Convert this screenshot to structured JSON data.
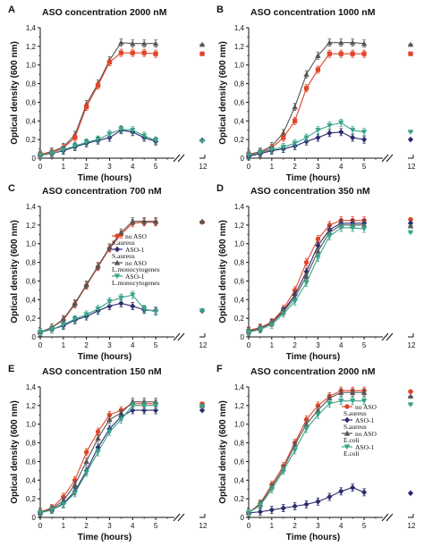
{
  "figure": {
    "x_ticks": [
      "0",
      "1",
      "2",
      "3",
      "4",
      "5"
    ],
    "y_ticks": [
      "0",
      "0,2",
      "0,4",
      "0,6",
      "0,8",
      "1,0",
      "1,2",
      "1,4"
    ],
    "x_break_label": "12",
    "xlabel": "Time (hours)",
    "ylabel": "Optical density (600 nm)"
  },
  "chart_data": [
    {
      "panel": "A",
      "title": "ASO concentration 2000 nM",
      "type": "line",
      "xlabel": "Time (hours)",
      "ylabel": "Optical density (600 nm)",
      "xlim": [
        0,
        5.5
      ],
      "ylim": [
        0,
        1.4
      ],
      "x": [
        0,
        0.5,
        1,
        1.5,
        2,
        2.5,
        3,
        3.5,
        4,
        4.5,
        5
      ],
      "series": [
        {
          "color": "#555555",
          "marker": "triangle-up",
          "values": [
            0.04,
            0.07,
            0.12,
            0.25,
            0.58,
            0.8,
            1.05,
            1.24,
            1.23,
            1.23,
            1.23
          ],
          "end_value": 1.22
        },
        {
          "color": "#e0452a",
          "marker": "square",
          "values": [
            0.04,
            0.06,
            0.11,
            0.22,
            0.55,
            0.78,
            1.03,
            1.13,
            1.13,
            1.13,
            1.12
          ],
          "end_value": 1.12
        },
        {
          "color": "#2c2c6e",
          "marker": "diamond",
          "values": [
            0.03,
            0.05,
            0.08,
            0.12,
            0.16,
            0.19,
            0.22,
            0.3,
            0.28,
            0.22,
            0.18
          ],
          "end_value": 0.19
        },
        {
          "color": "#3aa48a",
          "marker": "triangle-down",
          "values": [
            0.03,
            0.05,
            0.09,
            0.13,
            0.17,
            0.2,
            0.26,
            0.31,
            0.3,
            0.24,
            0.19
          ],
          "end_value": 0.18
        }
      ]
    },
    {
      "panel": "B",
      "title": "ASO concentration 1000 nM",
      "type": "line",
      "xlabel": "Time (hours)",
      "ylabel": "Optical density (600 nm)",
      "xlim": [
        0,
        5.5
      ],
      "ylim": [
        0,
        1.4
      ],
      "x": [
        0,
        0.5,
        1,
        1.5,
        2,
        2.5,
        3,
        3.5,
        4,
        4.5,
        5
      ],
      "series": [
        {
          "color": "#555555",
          "marker": "triangle-up",
          "values": [
            0.04,
            0.07,
            0.13,
            0.27,
            0.55,
            0.9,
            1.1,
            1.24,
            1.24,
            1.24,
            1.23
          ],
          "end_value": 1.22
        },
        {
          "color": "#e0452a",
          "marker": "square",
          "values": [
            0.04,
            0.06,
            0.11,
            0.22,
            0.4,
            0.75,
            0.95,
            1.12,
            1.12,
            1.12,
            1.12
          ],
          "end_value": 1.12
        },
        {
          "color": "#2c2c6e",
          "marker": "diamond",
          "values": [
            0.02,
            0.05,
            0.08,
            0.1,
            0.13,
            0.18,
            0.22,
            0.27,
            0.28,
            0.22,
            0.2
          ],
          "end_value": 0.2
        },
        {
          "color": "#3aa48a",
          "marker": "triangle-down",
          "values": [
            0.03,
            0.06,
            0.09,
            0.12,
            0.16,
            0.22,
            0.3,
            0.35,
            0.38,
            0.3,
            0.28
          ],
          "end_value": 0.28
        }
      ]
    },
    {
      "panel": "C",
      "title": "ASO concentration 700 nM",
      "type": "line",
      "xlabel": "Time (hours)",
      "ylabel": "Optical density (600 nm)",
      "xlim": [
        0,
        5.5
      ],
      "ylim": [
        0,
        1.4
      ],
      "x": [
        0,
        0.5,
        1,
        1.5,
        2,
        2.5,
        3,
        3.5,
        4,
        4.5,
        5
      ],
      "legend": {
        "position": "center-right",
        "entries": [
          "no ASO",
          "S.aureus",
          "ASO-1",
          "S.aureus",
          "no ASO",
          "L.monocytogenes",
          "ASO-1",
          "L.monocytogenes"
        ]
      },
      "series": [
        {
          "color": "#e0452a",
          "marker": "circle",
          "values": [
            0.05,
            0.1,
            0.18,
            0.35,
            0.55,
            0.75,
            0.95,
            1.1,
            1.22,
            1.23,
            1.23
          ],
          "end_value": 1.23
        },
        {
          "color": "#2c2c6e",
          "marker": "diamond",
          "values": [
            0.05,
            0.08,
            0.12,
            0.18,
            0.22,
            0.28,
            0.33,
            0.36,
            0.33,
            0.29,
            0.28
          ],
          "end_value": 0.28
        },
        {
          "color": "#555555",
          "marker": "triangle-up",
          "values": [
            0.05,
            0.1,
            0.19,
            0.36,
            0.56,
            0.76,
            0.96,
            1.12,
            1.24,
            1.24,
            1.24
          ],
          "end_value": 1.24
        },
        {
          "color": "#3aa48a",
          "marker": "triangle-down",
          "values": [
            0.05,
            0.08,
            0.13,
            0.19,
            0.24,
            0.3,
            0.38,
            0.42,
            0.45,
            0.3,
            0.27
          ],
          "end_value": 0.28
        }
      ]
    },
    {
      "panel": "D",
      "title": "ASO concentration 350 nM",
      "type": "line",
      "xlabel": "Time (hours)",
      "ylabel": "Optical density (600 nm)",
      "xlim": [
        0,
        5.5
      ],
      "ylim": [
        0,
        1.4
      ],
      "x": [
        0,
        0.5,
        1,
        1.5,
        2,
        2.5,
        3,
        3.5,
        4,
        4.5,
        5
      ],
      "series": [
        {
          "color": "#e0452a",
          "marker": "circle",
          "values": [
            0.07,
            0.1,
            0.16,
            0.3,
            0.5,
            0.8,
            1.05,
            1.2,
            1.25,
            1.25,
            1.25
          ],
          "end_value": 1.26
        },
        {
          "color": "#2c2c6e",
          "marker": "diamond",
          "values": [
            0.06,
            0.09,
            0.15,
            0.28,
            0.45,
            0.7,
            0.98,
            1.15,
            1.22,
            1.22,
            1.22
          ],
          "end_value": 1.22
        },
        {
          "color": "#555555",
          "marker": "triangle-up",
          "values": [
            0.06,
            0.09,
            0.15,
            0.27,
            0.42,
            0.65,
            0.92,
            1.12,
            1.2,
            1.2,
            1.2
          ],
          "end_value": 1.19
        },
        {
          "color": "#3aa48a",
          "marker": "triangle-down",
          "values": [
            0.05,
            0.08,
            0.13,
            0.25,
            0.38,
            0.58,
            0.85,
            1.08,
            1.17,
            1.17,
            1.16
          ],
          "end_value": 1.12
        }
      ]
    },
    {
      "panel": "E",
      "title": "ASO concentration 150 nM",
      "type": "line",
      "xlabel": "Time (hours)",
      "ylabel": "Optical density (600 nm)",
      "xlim": [
        0,
        5.5
      ],
      "ylim": [
        0,
        1.4
      ],
      "x": [
        0,
        0.5,
        1,
        1.5,
        2,
        2.5,
        3,
        3.5,
        4,
        4.5,
        5
      ],
      "series": [
        {
          "color": "#e0452a",
          "marker": "circle",
          "values": [
            0.06,
            0.1,
            0.22,
            0.4,
            0.7,
            0.92,
            1.1,
            1.15,
            1.22,
            1.22,
            1.22
          ],
          "end_value": 1.22
        },
        {
          "color": "#555555",
          "marker": "triangle-up",
          "values": [
            0.05,
            0.09,
            0.18,
            0.35,
            0.6,
            0.85,
            1.05,
            1.12,
            1.24,
            1.24,
            1.24
          ],
          "end_value": 1.2
        },
        {
          "color": "#2c2c6e",
          "marker": "diamond",
          "values": [
            0.05,
            0.08,
            0.15,
            0.28,
            0.5,
            0.75,
            0.95,
            1.08,
            1.15,
            1.15,
            1.15
          ],
          "end_value": 1.15
        },
        {
          "color": "#3aa48a",
          "marker": "triangle-down",
          "values": [
            0.05,
            0.08,
            0.14,
            0.26,
            0.48,
            0.7,
            0.92,
            1.05,
            1.2,
            1.2,
            1.2
          ],
          "end_value": 1.19
        }
      ]
    },
    {
      "panel": "F",
      "title": "ASO concentration 2000 nM",
      "type": "line",
      "xlabel": "Time (hours)",
      "ylabel": "Optical density (600 nm)",
      "xlim": [
        0,
        5.5
      ],
      "ylim": [
        0,
        1.4
      ],
      "x": [
        0,
        0.5,
        1,
        1.5,
        2,
        2.5,
        3,
        3.5,
        4,
        4.5,
        5
      ],
      "legend": {
        "position": "top-right",
        "entries": [
          "no ASO",
          "S.aureus",
          "ASO-1",
          "S.aureus",
          "no ASO",
          "E.coli",
          "ASO-1",
          "E.coli"
        ]
      },
      "series": [
        {
          "color": "#e0452a",
          "marker": "circle",
          "values": [
            0.05,
            0.15,
            0.35,
            0.55,
            0.8,
            1.05,
            1.2,
            1.3,
            1.36,
            1.36,
            1.36
          ],
          "end_value": 1.35
        },
        {
          "color": "#2c2c6e",
          "marker": "diamond",
          "values": [
            0.05,
            0.06,
            0.08,
            0.1,
            0.12,
            0.14,
            0.17,
            0.22,
            0.28,
            0.32,
            0.27
          ],
          "end_value": 0.26
        },
        {
          "color": "#555555",
          "marker": "triangle-up",
          "values": [
            0.05,
            0.14,
            0.33,
            0.52,
            0.78,
            1.0,
            1.15,
            1.28,
            1.34,
            1.34,
            1.34
          ],
          "end_value": 1.3
        },
        {
          "color": "#3aa48a",
          "marker": "triangle-down",
          "values": [
            0.05,
            0.13,
            0.3,
            0.5,
            0.72,
            0.95,
            1.1,
            1.22,
            1.25,
            1.25,
            1.25
          ],
          "end_value": 1.21
        }
      ]
    }
  ]
}
